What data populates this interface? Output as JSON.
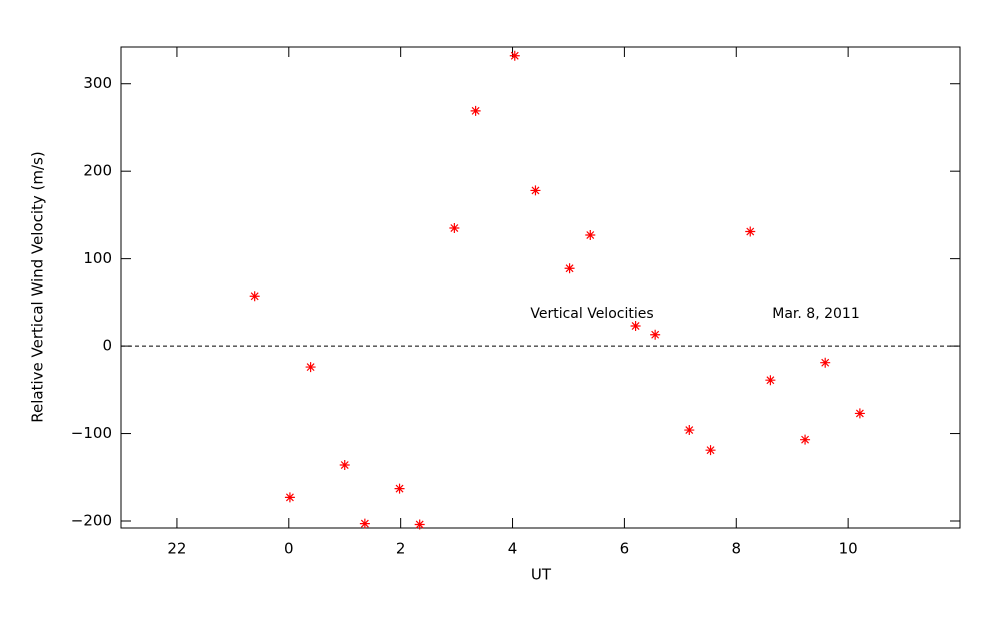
{
  "chart_data": {
    "type": "scatter",
    "xlabel": "UT",
    "ylabel": "Relative Vertical Wind Velocity (m/s)",
    "annotations": [
      "Vertical Velocities",
      "Mar. 8, 2011"
    ],
    "xlim": [
      -3,
      12
    ],
    "xticks": [
      {
        "value": -2,
        "label": "22"
      },
      0,
      2,
      4,
      6,
      8,
      10
    ],
    "ylim": [
      -208,
      342
    ],
    "yticks": [
      {
        "value": -200,
        "label": "−200"
      },
      {
        "value": -100,
        "label": "−100"
      },
      0,
      100,
      200,
      300
    ],
    "hline": 0,
    "series": [
      {
        "color": "#ff0000",
        "x": [
          -0.61,
          0.02,
          0.39,
          1.0,
          1.36,
          1.98,
          2.34,
          2.96,
          3.34,
          4.04,
          4.41,
          5.02,
          5.39,
          6.2,
          6.55,
          7.16,
          7.54,
          8.25,
          8.61,
          9.23,
          9.59,
          10.21
        ],
        "values": [
          57,
          -173,
          -24,
          -136,
          -203,
          -163,
          -204,
          135,
          269,
          332,
          178,
          89,
          127,
          23,
          13,
          -96,
          -119,
          131,
          -39,
          -107,
          -19,
          -77
        ]
      }
    ]
  }
}
